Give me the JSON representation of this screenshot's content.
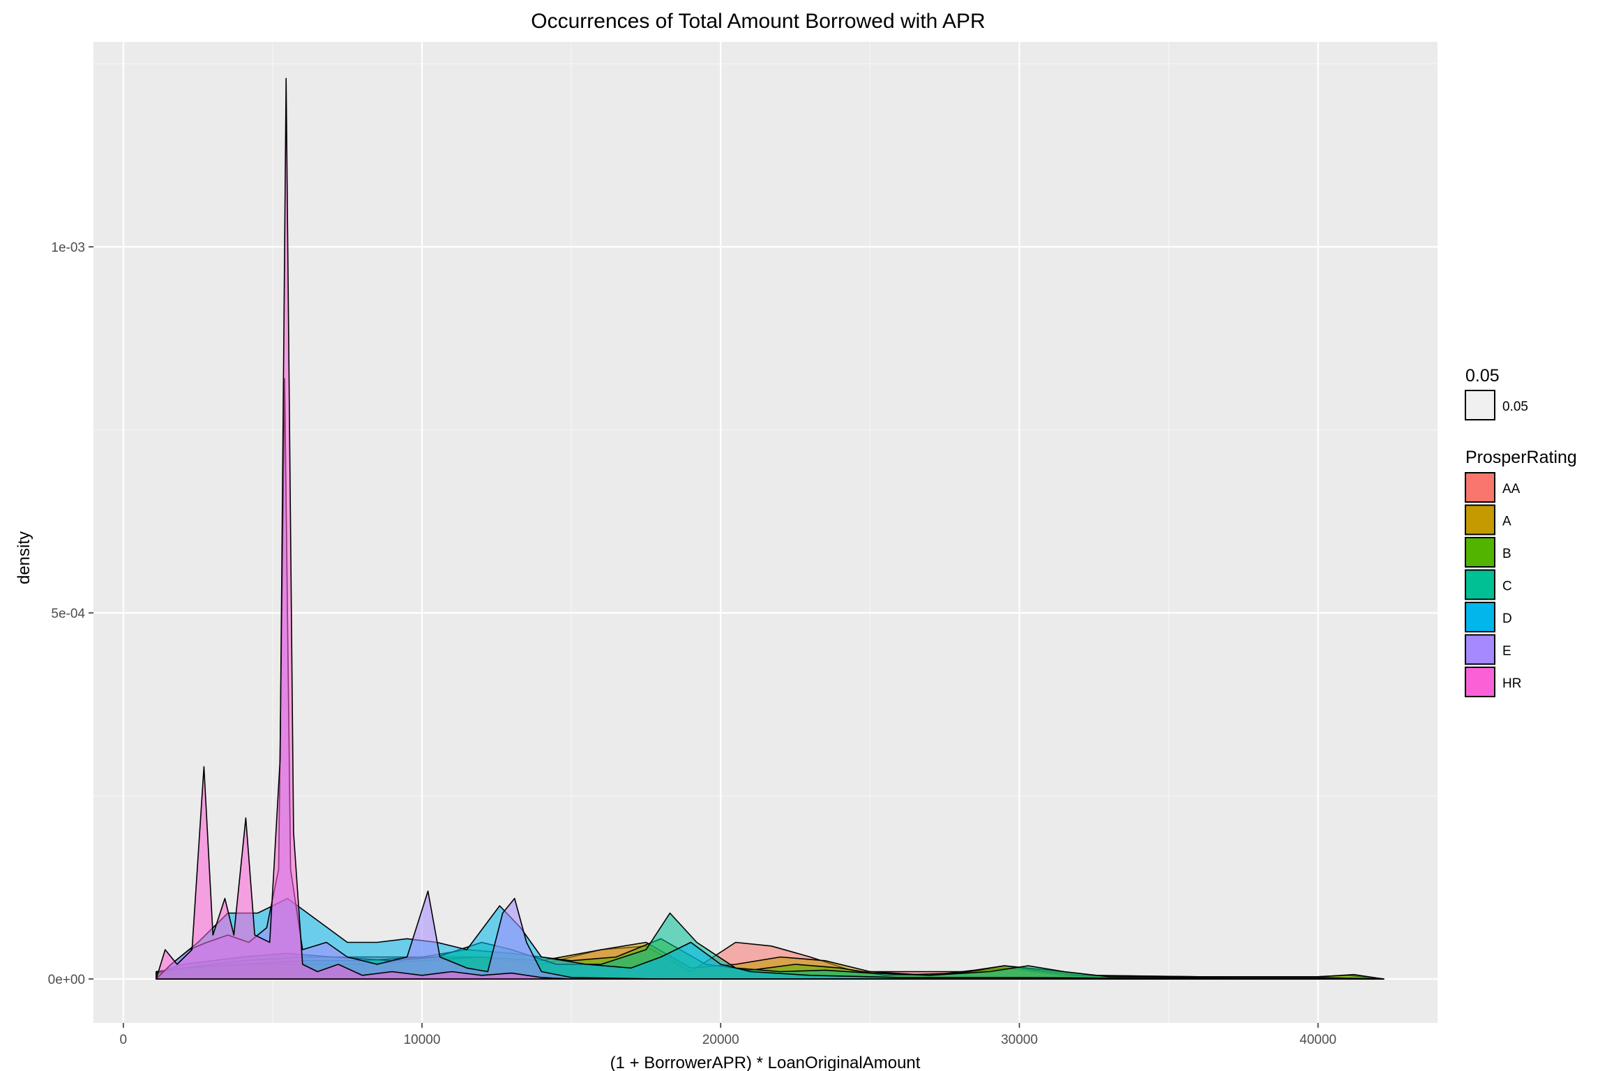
{
  "chart_data": {
    "type": "area",
    "title": "Occurrences of Total Amount Borrowed with APR",
    "xlabel": "(1 + BorrowerAPR) * LoanOriginalAmount",
    "ylabel": "density",
    "xlim": [
      -1000,
      44000
    ],
    "ylim": [
      -6e-05,
      0.00128
    ],
    "x_ticks": [
      0,
      10000,
      20000,
      30000,
      40000
    ],
    "x_tick_labels": [
      "0",
      "10000",
      "20000",
      "30000",
      "40000"
    ],
    "y_ticks": [
      0,
      0.0005,
      0.001
    ],
    "y_tick_labels": [
      "0e+00",
      "5e-04",
      "1e-03"
    ],
    "grid": true,
    "legend_position": "right",
    "alpha_legend": {
      "title": "0.05",
      "label": "0.05"
    },
    "legend": {
      "title": "ProsperRating"
    },
    "series": [
      {
        "name": "AA",
        "color": "#F8766D",
        "points": [
          [
            1100,
            1e-05
          ],
          [
            2000,
            1.5e-05
          ],
          [
            4000,
            2.5e-05
          ],
          [
            6000,
            3e-05
          ],
          [
            8000,
            3e-05
          ],
          [
            10000,
            3e-05
          ],
          [
            12000,
            3e-05
          ],
          [
            14000,
            2e-05
          ],
          [
            16000,
            4e-05
          ],
          [
            17500,
            4.5e-05
          ],
          [
            19000,
            1e-05
          ],
          [
            20500,
            5e-05
          ],
          [
            21700,
            4.5e-05
          ],
          [
            23000,
            3e-05
          ],
          [
            24500,
            1e-05
          ],
          [
            26000,
            1e-05
          ],
          [
            27000,
            1e-05
          ],
          [
            28500,
            1e-05
          ],
          [
            29500,
            1.5e-05
          ],
          [
            30500,
            1e-05
          ],
          [
            31500,
            5e-06
          ],
          [
            33000,
            3e-06
          ],
          [
            36000,
            2e-06
          ],
          [
            40000,
            2e-06
          ],
          [
            42200,
            0
          ]
        ]
      },
      {
        "name": "A",
        "color": "#C49A00",
        "points": [
          [
            1100,
            1e-05
          ],
          [
            2000,
            1.5e-05
          ],
          [
            4000,
            2e-05
          ],
          [
            6000,
            2e-05
          ],
          [
            8000,
            2e-05
          ],
          [
            10000,
            2.5e-05
          ],
          [
            12000,
            3e-05
          ],
          [
            14000,
            2.5e-05
          ],
          [
            16000,
            4e-05
          ],
          [
            17500,
            5e-05
          ],
          [
            19000,
            1.5e-05
          ],
          [
            20500,
            2e-05
          ],
          [
            22000,
            3e-05
          ],
          [
            23500,
            2.5e-05
          ],
          [
            25000,
            1e-05
          ],
          [
            27000,
            5e-06
          ],
          [
            28500,
            1.2e-05
          ],
          [
            29500,
            1.8e-05
          ],
          [
            30500,
            1.2e-05
          ],
          [
            32000,
            5e-06
          ],
          [
            36000,
            3e-06
          ],
          [
            40000,
            3e-06
          ],
          [
            41000,
            5e-06
          ],
          [
            42200,
            0
          ]
        ]
      },
      {
        "name": "B",
        "color": "#53B400",
        "points": [
          [
            1100,
            8e-06
          ],
          [
            2000,
            1.5e-05
          ],
          [
            4000,
            2e-05
          ],
          [
            6000,
            2.5e-05
          ],
          [
            8000,
            2.5e-05
          ],
          [
            10000,
            3e-05
          ],
          [
            11500,
            4e-05
          ],
          [
            13000,
            3.5e-05
          ],
          [
            15000,
            2.5e-05
          ],
          [
            16500,
            3e-05
          ],
          [
            18000,
            5.5e-05
          ],
          [
            19500,
            2e-05
          ],
          [
            21000,
            1.2e-05
          ],
          [
            22500,
            2e-05
          ],
          [
            24000,
            1.5e-05
          ],
          [
            25500,
            5e-06
          ],
          [
            28000,
            8e-06
          ],
          [
            29500,
            1.8e-05
          ],
          [
            31000,
            1.2e-05
          ],
          [
            32500,
            5e-06
          ],
          [
            36000,
            3e-06
          ],
          [
            40000,
            3e-06
          ],
          [
            41200,
            6e-06
          ],
          [
            42200,
            0
          ]
        ]
      },
      {
        "name": "C",
        "color": "#00C094",
        "points": [
          [
            1100,
            8e-06
          ],
          [
            2000,
            2e-05
          ],
          [
            4000,
            3e-05
          ],
          [
            5500,
            3.5e-05
          ],
          [
            7000,
            3e-05
          ],
          [
            9000,
            2.5e-05
          ],
          [
            10500,
            3e-05
          ],
          [
            12000,
            5e-05
          ],
          [
            13000,
            4e-05
          ],
          [
            14500,
            2e-05
          ],
          [
            16000,
            2e-05
          ],
          [
            17500,
            4e-05
          ],
          [
            18300,
            9e-05
          ],
          [
            19200,
            5e-05
          ],
          [
            20500,
            1.5e-05
          ],
          [
            22000,
            1e-05
          ],
          [
            23500,
            1.2e-05
          ],
          [
            25000,
            8e-06
          ],
          [
            27000,
            5e-06
          ],
          [
            29000,
            1e-05
          ],
          [
            30300,
            1.8e-05
          ],
          [
            31500,
            1e-05
          ],
          [
            33000,
            3e-06
          ],
          [
            36000,
            2e-06
          ],
          [
            40000,
            2e-06
          ],
          [
            42200,
            0
          ]
        ]
      },
      {
        "name": "D",
        "color": "#00B6EB",
        "points": [
          [
            1100,
            0
          ],
          [
            1600,
            2e-05
          ],
          [
            2500,
            5e-05
          ],
          [
            3500,
            9e-05
          ],
          [
            4500,
            9e-05
          ],
          [
            5500,
            0.00011
          ],
          [
            6500,
            8e-05
          ],
          [
            7500,
            5e-05
          ],
          [
            8500,
            5e-05
          ],
          [
            9500,
            5.5e-05
          ],
          [
            10500,
            5e-05
          ],
          [
            11500,
            4e-05
          ],
          [
            12600,
            0.0001
          ],
          [
            13300,
            7e-05
          ],
          [
            14000,
            3e-05
          ],
          [
            15500,
            2e-05
          ],
          [
            17000,
            1.5e-05
          ],
          [
            18000,
            3e-05
          ],
          [
            19000,
            5e-05
          ],
          [
            20000,
            2e-05
          ],
          [
            21000,
            1e-05
          ],
          [
            23000,
            5e-06
          ],
          [
            26000,
            2e-06
          ],
          [
            30000,
            2e-06
          ],
          [
            34000,
            1e-06
          ],
          [
            38000,
            0
          ],
          [
            42200,
            0
          ]
        ]
      },
      {
        "name": "E",
        "color": "#A58AFF",
        "points": [
          [
            1100,
            0
          ],
          [
            1600,
            2e-05
          ],
          [
            2200,
            4e-05
          ],
          [
            2800,
            5e-05
          ],
          [
            3500,
            6e-05
          ],
          [
            4200,
            5e-05
          ],
          [
            4800,
            7e-05
          ],
          [
            5200,
            0.00015
          ],
          [
            5400,
            0.00082
          ],
          [
            5600,
            0.00015
          ],
          [
            6000,
            4e-05
          ],
          [
            6800,
            5e-05
          ],
          [
            7500,
            3e-05
          ],
          [
            8500,
            2e-05
          ],
          [
            9500,
            3e-05
          ],
          [
            10200,
            0.00012
          ],
          [
            10600,
            3e-05
          ],
          [
            11500,
            1.5e-05
          ],
          [
            12200,
            1e-05
          ],
          [
            12700,
            9e-05
          ],
          [
            13100,
            0.00011
          ],
          [
            13500,
            5e-05
          ],
          [
            14000,
            1e-05
          ],
          [
            15000,
            2e-06
          ],
          [
            18000,
            0
          ],
          [
            42200,
            0
          ]
        ]
      },
      {
        "name": "HR",
        "color": "#FB61D7",
        "points": [
          [
            1100,
            0
          ],
          [
            1400,
            4e-05
          ],
          [
            1800,
            2e-05
          ],
          [
            2300,
            4e-05
          ],
          [
            2700,
            0.00029
          ],
          [
            3000,
            6e-05
          ],
          [
            3400,
            0.00011
          ],
          [
            3700,
            6e-05
          ],
          [
            4100,
            0.00022
          ],
          [
            4400,
            6e-05
          ],
          [
            4900,
            5e-05
          ],
          [
            5250,
            0.0003
          ],
          [
            5450,
            0.00123
          ],
          [
            5700,
            0.0002
          ],
          [
            6000,
            2e-05
          ],
          [
            6500,
            1e-05
          ],
          [
            7200,
            2e-05
          ],
          [
            8000,
            5e-06
          ],
          [
            9000,
            1e-05
          ],
          [
            10000,
            5e-06
          ],
          [
            11000,
            1e-05
          ],
          [
            12000,
            5e-06
          ],
          [
            13000,
            8e-06
          ],
          [
            14000,
            2e-06
          ],
          [
            15000,
            0
          ],
          [
            42200,
            0
          ]
        ]
      }
    ]
  }
}
